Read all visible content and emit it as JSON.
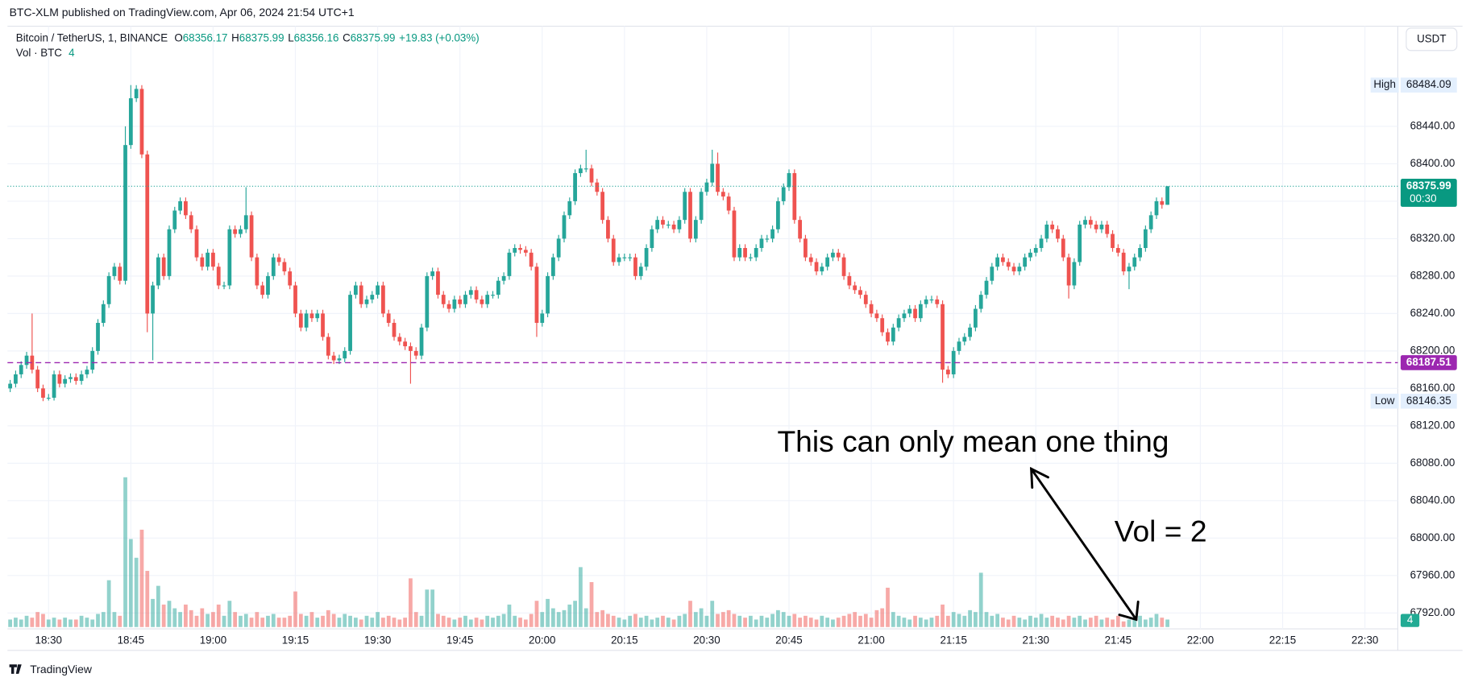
{
  "chart_data": {
    "type": "candlestick",
    "header": "BTC-XLM published on TradingView.com, Apr 06, 2024 21:54 UTC+1",
    "title": "Bitcoin / TetherUS, 1, BINANCE",
    "ohlc_letters": [
      "O",
      "H",
      "L",
      "C"
    ],
    "change_label": "+19.83 (+0.03%)",
    "volume_label": "Vol · BTC",
    "currency": "USDT",
    "high_label": "High",
    "low_label": "Low",
    "countdown": "00:30",
    "alert_line": {
      "value": 68187.51,
      "color": "#9c27b0"
    },
    "annotations": [
      "This can only mean one thing",
      "Vol = 2"
    ],
    "brand": "TradingView",
    "up_color": "#26a69a",
    "down_color": "#ef5350",
    "grid": true,
    "x": [
      "18:23",
      "18:24",
      "18:25",
      "18:26",
      "18:27",
      "18:28",
      "18:29",
      "18:30",
      "18:31",
      "18:32",
      "18:33",
      "18:34",
      "18:35",
      "18:36",
      "18:37",
      "18:38",
      "18:39",
      "18:40",
      "18:41",
      "18:42",
      "18:43",
      "18:44",
      "18:45",
      "18:46",
      "18:47",
      "18:48",
      "18:49",
      "18:50",
      "18:51",
      "18:52",
      "18:53",
      "18:54",
      "18:55",
      "18:56",
      "18:57",
      "18:58",
      "18:59",
      "19:00",
      "19:01",
      "19:02",
      "19:03",
      "19:04",
      "19:05",
      "19:06",
      "19:07",
      "19:08",
      "19:09",
      "19:10",
      "19:11",
      "19:12",
      "19:13",
      "19:14",
      "19:15",
      "19:16",
      "19:17",
      "19:18",
      "19:19",
      "19:20",
      "19:21",
      "19:22",
      "19:23",
      "19:24",
      "19:25",
      "19:26",
      "19:27",
      "19:28",
      "19:29",
      "19:30",
      "19:31",
      "19:32",
      "19:33",
      "19:34",
      "19:35",
      "19:36",
      "19:37",
      "19:38",
      "19:39",
      "19:40",
      "19:41",
      "19:42",
      "19:43",
      "19:44",
      "19:45",
      "19:46",
      "19:47",
      "19:48",
      "19:49",
      "19:50",
      "19:51",
      "19:52",
      "19:53",
      "19:54",
      "19:55",
      "19:56",
      "19:57",
      "19:58",
      "19:59",
      "20:00",
      "20:01",
      "20:02",
      "20:03",
      "20:04",
      "20:05",
      "20:06",
      "20:07",
      "20:08",
      "20:09",
      "20:10",
      "20:11",
      "20:12",
      "20:13",
      "20:14",
      "20:15",
      "20:16",
      "20:17",
      "20:18",
      "20:19",
      "20:20",
      "20:21",
      "20:22",
      "20:23",
      "20:24",
      "20:25",
      "20:26",
      "20:27",
      "20:28",
      "20:29",
      "20:30",
      "20:31",
      "20:32",
      "20:33",
      "20:34",
      "20:35",
      "20:36",
      "20:37",
      "20:38",
      "20:39",
      "20:40",
      "20:41",
      "20:42",
      "20:43",
      "20:44",
      "20:45",
      "20:46",
      "20:47",
      "20:48",
      "20:49",
      "20:50",
      "20:51",
      "20:52",
      "20:53",
      "20:54",
      "20:55",
      "20:56",
      "20:57",
      "20:58",
      "20:59",
      "21:00",
      "21:01",
      "21:02",
      "21:03",
      "21:04",
      "21:05",
      "21:06",
      "21:07",
      "21:08",
      "21:09",
      "21:10",
      "21:11",
      "21:12",
      "21:13",
      "21:14",
      "21:15",
      "21:16",
      "21:17",
      "21:18",
      "21:19",
      "21:20",
      "21:21",
      "21:22",
      "21:23",
      "21:24",
      "21:25",
      "21:26",
      "21:27",
      "21:28",
      "21:29",
      "21:30",
      "21:31",
      "21:32",
      "21:33",
      "21:34",
      "21:35",
      "21:36",
      "21:37",
      "21:38",
      "21:39",
      "21:40",
      "21:41",
      "21:42",
      "21:43",
      "21:44",
      "21:45",
      "21:46",
      "21:47",
      "21:48",
      "21:49",
      "21:50",
      "21:51",
      "21:52",
      "21:53",
      "21:54"
    ],
    "open": [
      68160,
      68165,
      68175,
      68185,
      68195,
      68180,
      68160,
      68150,
      68150,
      68175,
      68165,
      68170,
      68172,
      68168,
      68175,
      68180,
      68200,
      68230,
      68250,
      68280,
      68290,
      68275,
      68420,
      68470,
      68480,
      68410,
      68240,
      68270,
      68300,
      68280,
      68330,
      68350,
      68360,
      68345,
      68330,
      68300,
      68290,
      68305,
      68290,
      68270,
      68270,
      68330,
      68325,
      68330,
      68345,
      68300,
      68270,
      68260,
      68280,
      68300,
      68295,
      68285,
      68270,
      68240,
      68225,
      68240,
      68235,
      68240,
      68215,
      68195,
      68190,
      68192,
      68200,
      68260,
      68270,
      68250,
      68255,
      68260,
      68270,
      68240,
      68230,
      68215,
      68210,
      68205,
      68200,
      68195,
      68225,
      68280,
      68285,
      68260,
      68250,
      68245,
      68255,
      68250,
      68260,
      68265,
      68255,
      68250,
      68260,
      68260,
      68275,
      68280,
      68305,
      68310,
      68308,
      68305,
      68290,
      68230,
      68240,
      68280,
      68300,
      68320,
      68345,
      68360,
      68390,
      68395,
      68395,
      68380,
      68370,
      68340,
      68320,
      68295,
      68300,
      68300,
      68300,
      68280,
      68290,
      68310,
      68330,
      68340,
      68335,
      68335,
      68330,
      68340,
      68370,
      68320,
      68340,
      68370,
      68380,
      68400,
      68370,
      68365,
      68350,
      68300,
      68310,
      68300,
      68300,
      68310,
      68320,
      68320,
      68330,
      68360,
      68375,
      68390,
      68340,
      68320,
      68300,
      68295,
      68285,
      68290,
      68300,
      68305,
      68300,
      68280,
      68270,
      68265,
      68260,
      68250,
      68240,
      68235,
      68220,
      68210,
      68225,
      68235,
      68240,
      68245,
      68235,
      68250,
      68255,
      68255,
      68250,
      68180,
      68175,
      68200,
      68210,
      68215,
      68225,
      68245,
      68260,
      68275,
      68290,
      68300,
      68295,
      68290,
      68285,
      68290,
      68300,
      68305,
      68310,
      68320,
      68335,
      68330,
      68320,
      68300,
      68270,
      68295,
      68335,
      68340,
      68335,
      68330,
      68335,
      68325,
      68310,
      68305,
      68285,
      68290,
      68300,
      68310,
      68330,
      68345,
      68360,
      68356.17
    ],
    "high": [
      68169,
      68179,
      68189,
      68199,
      68240,
      68184,
      68164,
      68154,
      68179,
      68179,
      68174,
      68176,
      68176,
      68179,
      68184,
      68204,
      68234,
      68254,
      68284,
      68294,
      68294,
      68440,
      68484.09,
      68484,
      68484,
      68414,
      68274,
      68304,
      68304,
      68334,
      68354,
      68364,
      68364,
      68349,
      68334,
      68304,
      68309,
      68309,
      68294,
      68274,
      68334,
      68334,
      68334,
      68375,
      68349,
      68304,
      68274,
      68284,
      68304,
      68304,
      68299,
      68289,
      68274,
      68244,
      68244,
      68244,
      68244,
      68244,
      68219,
      68199,
      68196,
      68204,
      68264,
      68274,
      68274,
      68259,
      68264,
      68274,
      68274,
      68244,
      68234,
      68219,
      68214,
      68209,
      68204,
      68229,
      68284,
      68289,
      68289,
      68264,
      68254,
      68259,
      68259,
      68264,
      68269,
      68269,
      68259,
      68264,
      68264,
      68279,
      68284,
      68309,
      68314,
      68314,
      68312,
      68309,
      68294,
      68244,
      68284,
      68304,
      68324,
      68349,
      68364,
      68394,
      68399,
      68415,
      68399,
      68384,
      68374,
      68344,
      68324,
      68304,
      68304,
      68304,
      68304,
      68294,
      68314,
      68334,
      68344,
      68344,
      68339,
      68339,
      68344,
      68374,
      68374,
      68344,
      68374,
      68384,
      68415,
      68412,
      68374,
      68369,
      68354,
      68314,
      68314,
      68304,
      68314,
      68324,
      68324,
      68334,
      68364,
      68379,
      68394,
      68394,
      68344,
      68324,
      68304,
      68299,
      68294,
      68304,
      68309,
      68309,
      68304,
      68284,
      68274,
      68269,
      68264,
      68254,
      68244,
      68239,
      68224,
      68229,
      68239,
      68244,
      68249,
      68249,
      68254,
      68259,
      68259,
      68259,
      68254,
      68184,
      68204,
      68214,
      68219,
      68229,
      68249,
      68264,
      68279,
      68294,
      68304,
      68304,
      68299,
      68294,
      68294,
      68304,
      68309,
      68314,
      68324,
      68339,
      68339,
      68334,
      68324,
      68304,
      68299,
      68339,
      68344,
      68344,
      68339,
      68339,
      68339,
      68329,
      68314,
      68309,
      68294,
      68304,
      68314,
      68334,
      68349,
      68364,
      68364,
      68375.99
    ],
    "low": [
      68156,
      68161,
      68171,
      68181,
      68176,
      68156,
      68146.35,
      68147,
      68147,
      68161,
      68161,
      68166,
      68164,
      68164,
      68171,
      68176,
      68196,
      68226,
      68246,
      68276,
      68271,
      68271,
      68416,
      68466,
      68406,
      68220,
      68190,
      68266,
      68276,
      68276,
      68326,
      68346,
      68341,
      68326,
      68296,
      68286,
      68286,
      68286,
      68266,
      68266,
      68266,
      68321,
      68321,
      68326,
      68296,
      68266,
      68256,
      68256,
      68276,
      68291,
      68281,
      68266,
      68236,
      68221,
      68221,
      68231,
      68231,
      68211,
      68191,
      68186,
      68186,
      68188,
      68196,
      68256,
      68246,
      68246,
      68251,
      68256,
      68236,
      68226,
      68211,
      68206,
      68201,
      68165,
      68191,
      68191,
      68221,
      68276,
      68256,
      68246,
      68241,
      68241,
      68246,
      68246,
      68256,
      68251,
      68246,
      68246,
      68256,
      68256,
      68271,
      68276,
      68301,
      68304,
      68301,
      68286,
      68215,
      68226,
      68236,
      68276,
      68296,
      68316,
      68341,
      68356,
      68386,
      68391,
      68376,
      68366,
      68336,
      68316,
      68291,
      68291,
      68296,
      68296,
      68276,
      68276,
      68286,
      68306,
      68326,
      68331,
      68331,
      68326,
      68326,
      68336,
      68316,
      68316,
      68336,
      68366,
      68376,
      68366,
      68361,
      68346,
      68296,
      68296,
      68296,
      68296,
      68296,
      68306,
      68316,
      68316,
      68326,
      68356,
      68371,
      68336,
      68316,
      68296,
      68291,
      68281,
      68281,
      68286,
      68296,
      68296,
      68276,
      68266,
      68261,
      68256,
      68246,
      68236,
      68231,
      68216,
      68206,
      68206,
      68221,
      68231,
      68236,
      68231,
      68231,
      68246,
      68251,
      68246,
      68166,
      68171,
      68171,
      68196,
      68206,
      68211,
      68221,
      68241,
      68256,
      68271,
      68286,
      68291,
      68286,
      68281,
      68281,
      68286,
      68296,
      68301,
      68306,
      68316,
      68326,
      68316,
      68296,
      68256,
      68266,
      68291,
      68331,
      68331,
      68326,
      68326,
      68321,
      68306,
      68301,
      68281,
      68266,
      68286,
      68296,
      68306,
      68326,
      68341,
      68352,
      68356.16
    ],
    "close": [
      68165,
      68175,
      68185,
      68195,
      68180,
      68160,
      68150,
      68150,
      68175,
      68165,
      68170,
      68172,
      68168,
      68175,
      68180,
      68200,
      68230,
      68250,
      68280,
      68290,
      68275,
      68420,
      68470,
      68480,
      68410,
      68240,
      68270,
      68300,
      68280,
      68330,
      68350,
      68360,
      68345,
      68330,
      68300,
      68290,
      68305,
      68290,
      68270,
      68270,
      68330,
      68325,
      68330,
      68345,
      68300,
      68270,
      68260,
      68280,
      68300,
      68295,
      68285,
      68270,
      68240,
      68225,
      68240,
      68235,
      68240,
      68215,
      68195,
      68190,
      68192,
      68200,
      68260,
      68270,
      68250,
      68255,
      68260,
      68270,
      68240,
      68230,
      68215,
      68210,
      68205,
      68200,
      68195,
      68225,
      68280,
      68285,
      68260,
      68250,
      68245,
      68255,
      68250,
      68260,
      68265,
      68255,
      68250,
      68260,
      68260,
      68275,
      68280,
      68305,
      68310,
      68308,
      68305,
      68290,
      68230,
      68240,
      68280,
      68300,
      68320,
      68345,
      68360,
      68390,
      68395,
      68395,
      68380,
      68370,
      68340,
      68320,
      68295,
      68300,
      68300,
      68300,
      68280,
      68290,
      68310,
      68330,
      68340,
      68335,
      68335,
      68330,
      68340,
      68370,
      68320,
      68340,
      68370,
      68380,
      68400,
      68370,
      68365,
      68350,
      68300,
      68310,
      68300,
      68300,
      68310,
      68320,
      68320,
      68330,
      68360,
      68375,
      68390,
      68340,
      68320,
      68300,
      68295,
      68285,
      68290,
      68300,
      68305,
      68300,
      68280,
      68270,
      68265,
      68260,
      68250,
      68240,
      68235,
      68220,
      68210,
      68225,
      68235,
      68240,
      68245,
      68235,
      68250,
      68255,
      68255,
      68250,
      68180,
      68175,
      68200,
      68210,
      68215,
      68225,
      68245,
      68260,
      68275,
      68290,
      68300,
      68295,
      68290,
      68285,
      68290,
      68300,
      68305,
      68310,
      68320,
      68335,
      68330,
      68320,
      68300,
      68270,
      68295,
      68335,
      68340,
      68335,
      68330,
      68335,
      68325,
      68310,
      68305,
      68285,
      68290,
      68300,
      68310,
      68330,
      68345,
      68360,
      68356.17,
      68375.99
    ],
    "volume": [
      4,
      5,
      4,
      6,
      5,
      8,
      7,
      4,
      5,
      4,
      5,
      4,
      4,
      6,
      5,
      4,
      7,
      8,
      25,
      8,
      6,
      80,
      47,
      37,
      52,
      30,
      15,
      22,
      12,
      14,
      10,
      8,
      12,
      9,
      6,
      10,
      7,
      8,
      12,
      6,
      14,
      8,
      6,
      7,
      5,
      8,
      5,
      6,
      7,
      5,
      5,
      6,
      19,
      7,
      6,
      8,
      5,
      6,
      9,
      7,
      5,
      7,
      6,
      5,
      4,
      6,
      5,
      8,
      5,
      6,
      5,
      4,
      5,
      26,
      8,
      6,
      20,
      20,
      7,
      6,
      5,
      4,
      5,
      6,
      4,
      5,
      4,
      6,
      5,
      6,
      7,
      12,
      6,
      5,
      4,
      7,
      14,
      8,
      15,
      10,
      8,
      9,
      12,
      14,
      32,
      10,
      24,
      8,
      9,
      7,
      6,
      5,
      4,
      6,
      7,
      5,
      6,
      4,
      5,
      6,
      5,
      4,
      6,
      7,
      14,
      8,
      10,
      6,
      14,
      7,
      8,
      9,
      7,
      6,
      5,
      6,
      4,
      6,
      5,
      7,
      9,
      8,
      6,
      7,
      5,
      6,
      5,
      4,
      6,
      5,
      4,
      5,
      6,
      7,
      8,
      6,
      7,
      5,
      9,
      10,
      21,
      8,
      6,
      5,
      4,
      6,
      5,
      4,
      5,
      6,
      12,
      6,
      8,
      7,
      6,
      9,
      8,
      29,
      8,
      6,
      7,
      5,
      4,
      6,
      5,
      4,
      6,
      5,
      7,
      5,
      6,
      5,
      4,
      6,
      5,
      6,
      4,
      5,
      6,
      4,
      5,
      4,
      6,
      3,
      4,
      5,
      6,
      4,
      5,
      7,
      5,
      4
    ],
    "xlim": [
      "18:22",
      "22:36"
    ],
    "xticks": [
      "18:30",
      "18:45",
      "19:00",
      "19:15",
      "19:30",
      "19:45",
      "20:00",
      "20:15",
      "20:30",
      "20:45",
      "21:00",
      "21:15",
      "21:30",
      "21:45",
      "22:00",
      "22:15",
      "22:30"
    ],
    "ylim": [
      67905,
      68523
    ],
    "yticks": [
      {
        "value": 67920,
        "label": "67920.00"
      },
      {
        "value": 67960,
        "label": "67960.00"
      },
      {
        "value": 68000,
        "label": "68000.00"
      },
      {
        "value": 68040,
        "label": "68040.00"
      },
      {
        "value": 68080,
        "label": "68080.00"
      },
      {
        "value": 68120,
        "label": "68120.00"
      },
      {
        "value": 68160,
        "label": "68160.00"
      },
      {
        "value": 68200,
        "label": "68200.00"
      },
      {
        "value": 68240,
        "label": "68240.00"
      },
      {
        "value": 68280,
        "label": "68280.00"
      },
      {
        "value": 68320,
        "label": "68320.00"
      },
      {
        "value": 68360,
        "label": "68360.00"
      },
      {
        "value": 68400,
        "label": "68400.00"
      },
      {
        "value": 68440,
        "label": "68440.00"
      }
    ]
  }
}
